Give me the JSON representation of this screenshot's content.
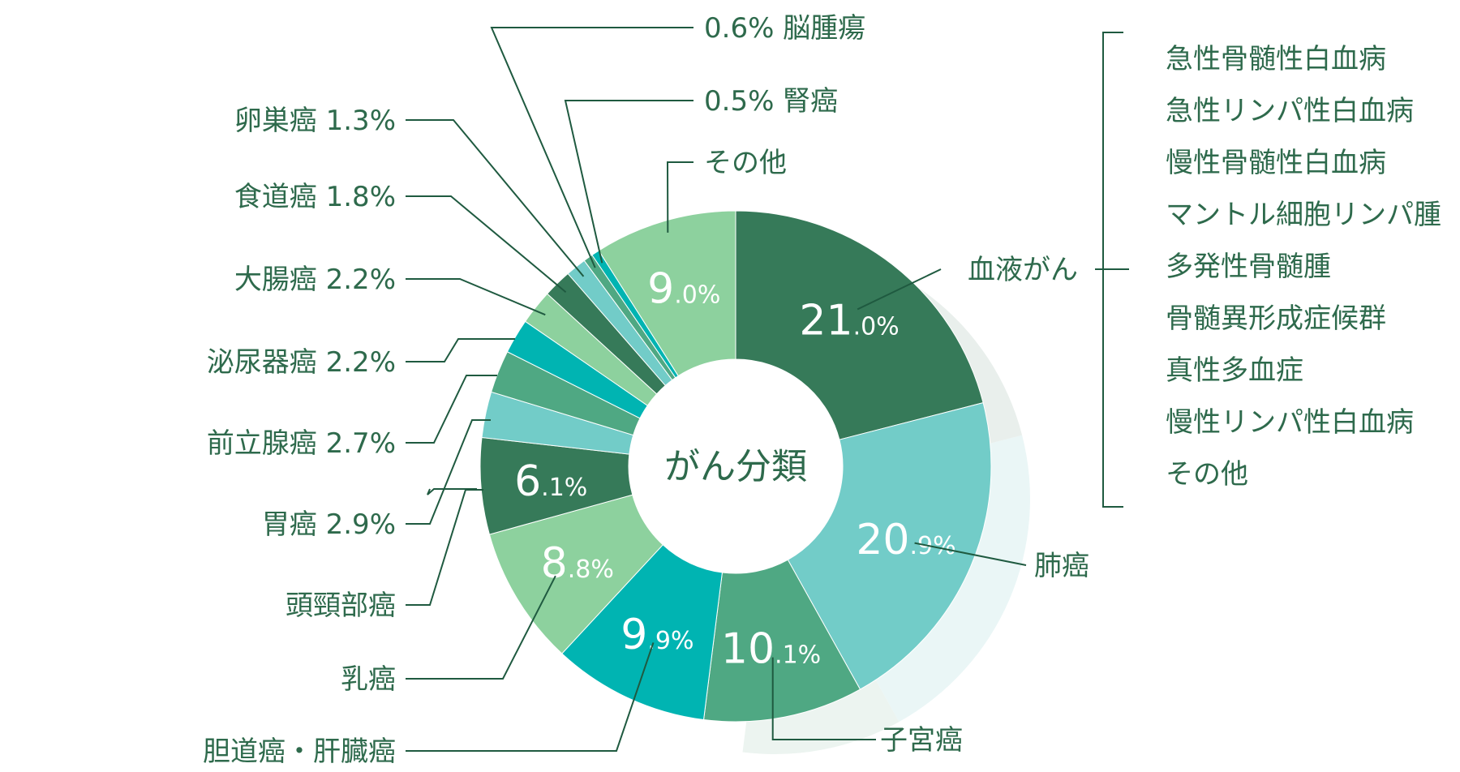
{
  "chart_data": {
    "type": "pie",
    "title": "",
    "center_label": "がん分類",
    "slices": [
      {
        "label": "血液がん",
        "value": 21.0,
        "int": "21",
        "dec": ".0%",
        "color": "#367a59",
        "show_value": true
      },
      {
        "label": "肺癌",
        "value": 20.9,
        "int": "20",
        "dec": ".9%",
        "color": "#72ccc8",
        "show_value": true
      },
      {
        "label": "子宮癌",
        "value": 10.1,
        "int": "10",
        "dec": ".1%",
        "color": "#4fa883",
        "show_value": true
      },
      {
        "label": "胆道癌・肝臓癌",
        "value": 9.9,
        "int": "9",
        "dec": ".9%",
        "color": "#00b4b2",
        "show_value": true
      },
      {
        "label": "乳癌",
        "value": 8.8,
        "int": "8",
        "dec": ".8%",
        "color": "#8dd19e",
        "show_value": true
      },
      {
        "label": "頭頸部癌",
        "value": 6.1,
        "int": "6",
        "dec": ".1%",
        "color": "#367a59",
        "show_value": true
      },
      {
        "label": "胃癌",
        "value": 2.9,
        "value_text": "2.9%",
        "color": "#72ccc8",
        "show_value": false
      },
      {
        "label": "前立腺癌",
        "value": 2.7,
        "value_text": "2.7%",
        "color": "#4fa883",
        "show_value": false
      },
      {
        "label": "泌尿器癌",
        "value": 2.2,
        "value_text": "2.2%",
        "color": "#00b4b2",
        "show_value": false
      },
      {
        "label": "大腸癌",
        "value": 2.2,
        "value_text": "2.2%",
        "color": "#8dd19e",
        "show_value": false
      },
      {
        "label": "食道癌",
        "value": 1.8,
        "value_text": "1.8%",
        "color": "#367a59",
        "show_value": false
      },
      {
        "label": "卵巣癌",
        "value": 1.3,
        "value_text": "1.3%",
        "color": "#72ccc8",
        "show_value": false
      },
      {
        "label": "脳腫瘍",
        "value": 0.6,
        "value_text": "0.6%",
        "color": "#4fa883",
        "show_value": false
      },
      {
        "label": "腎癌",
        "value": 0.5,
        "value_text": "0.5%",
        "color": "#00b4b2",
        "show_value": false
      },
      {
        "label": "その他",
        "value": 9.0,
        "int": "9",
        "dec": ".0%",
        "color": "#8dd19e",
        "show_value": true
      }
    ],
    "blood_cancer_subtypes": [
      "急性骨髄性白血病",
      "急性リンパ性白血病",
      "慢性骨髄性白血病",
      "マントル細胞リンパ腫",
      "多発性骨髄腫",
      "骨髄異形成症候群",
      "真性多血症",
      "慢性リンパ性白血病",
      "その他"
    ]
  }
}
